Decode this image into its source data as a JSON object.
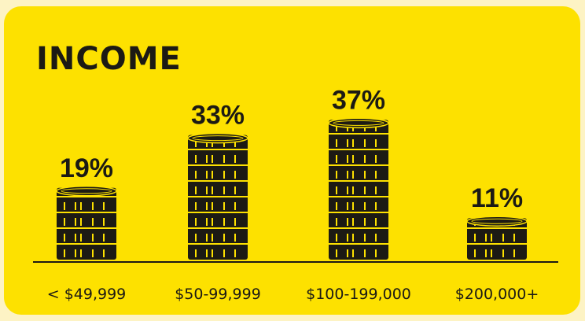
{
  "chart_data": {
    "type": "bar",
    "title": "INCOME",
    "categories": [
      "< $49,999",
      "$50-99,999",
      "$100-199,000",
      "$200,000+"
    ],
    "values": [
      19,
      33,
      37,
      11
    ],
    "value_labels": [
      "19%",
      "33%",
      "37%",
      "11%"
    ],
    "color": "#1c1a14"
  }
}
